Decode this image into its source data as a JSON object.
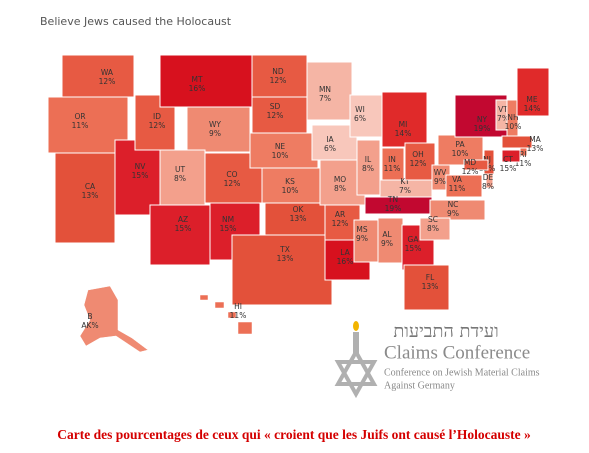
{
  "title": "Believe Jews caused the Holocaust",
  "states": [
    {
      "abbr": "WA",
      "value": 12,
      "value_label": "12%",
      "color": "#e75a43"
    },
    {
      "abbr": "OR",
      "value": 11,
      "value_label": "11%",
      "color": "#ec6f55"
    },
    {
      "abbr": "CA",
      "value": 13,
      "value_label": "13%",
      "color": "#e3513a"
    },
    {
      "abbr": "NV",
      "value": 15,
      "value_label": "15%",
      "color": "#dc1f2a"
    },
    {
      "abbr": "ID",
      "value": 12,
      "value_label": "12%",
      "color": "#e75a43"
    },
    {
      "abbr": "MT",
      "value": 16,
      "value_label": "16%",
      "color": "#d7111e"
    },
    {
      "abbr": "WY",
      "value": 9,
      "value_label": "9%",
      "color": "#ef8a72"
    },
    {
      "abbr": "UT",
      "value": 8,
      "value_label": "8%",
      "color": "#f3a08c"
    },
    {
      "abbr": "AZ",
      "value": 15,
      "value_label": "15%",
      "color": "#dc1f2a"
    },
    {
      "abbr": "NM",
      "value": 15,
      "value_label": "15%",
      "color": "#dc1f2a"
    },
    {
      "abbr": "CO",
      "value": 12,
      "value_label": "12%",
      "color": "#e75a43"
    },
    {
      "abbr": "ND",
      "value": 12,
      "value_label": "12%",
      "color": "#e75a43"
    },
    {
      "abbr": "SD",
      "value": 12,
      "value_label": "12%",
      "color": "#e75a43"
    },
    {
      "abbr": "NE",
      "value": 10,
      "value_label": "10%",
      "color": "#ee7c62"
    },
    {
      "abbr": "KS",
      "value": 10,
      "value_label": "10%",
      "color": "#ee7c62"
    },
    {
      "abbr": "OK",
      "value": 13,
      "value_label": "13%",
      "color": "#e3513a"
    },
    {
      "abbr": "TX",
      "value": 13,
      "value_label": "13%",
      "color": "#e3513a"
    },
    {
      "abbr": "MN",
      "value": 7,
      "value_label": "7%",
      "color": "#f5b5a5"
    },
    {
      "abbr": "IA",
      "value": 6,
      "value_label": "6%",
      "color": "#f8c7bb"
    },
    {
      "abbr": "MO",
      "value": 8,
      "value_label": "8%",
      "color": "#f3a08c"
    },
    {
      "abbr": "AR",
      "value": 12,
      "value_label": "12%",
      "color": "#e75a43"
    },
    {
      "abbr": "LA",
      "value": 16,
      "value_label": "16%",
      "color": "#d7111e"
    },
    {
      "abbr": "WI",
      "value": 6,
      "value_label": "6%",
      "color": "#f8c7bb"
    },
    {
      "abbr": "IL",
      "value": 8,
      "value_label": "8%",
      "color": "#f3a08c"
    },
    {
      "abbr": "MS",
      "value": 9,
      "value_label": "9%",
      "color": "#ef8a72"
    },
    {
      "abbr": "MI",
      "value": 14,
      "value_label": "14%",
      "color": "#e02a2a"
    },
    {
      "abbr": "IN",
      "value": 11,
      "value_label": "11%",
      "color": "#ec6f55"
    },
    {
      "abbr": "KY",
      "value": 7,
      "value_label": "7%",
      "color": "#f5b5a5"
    },
    {
      "abbr": "TN",
      "value": 19,
      "value_label": "19%",
      "color": "#c20830"
    },
    {
      "abbr": "AL",
      "value": 9,
      "value_label": "9%",
      "color": "#ef8a72"
    },
    {
      "abbr": "OH",
      "value": 12,
      "value_label": "12%",
      "color": "#e75a43"
    },
    {
      "abbr": "GA",
      "value": 15,
      "value_label": "15%",
      "color": "#dc1f2a"
    },
    {
      "abbr": "FL",
      "value": 13,
      "value_label": "13%",
      "color": "#e3513a"
    },
    {
      "abbr": "WV",
      "value": 9,
      "value_label": "9%",
      "color": "#ef8a72"
    },
    {
      "abbr": "VA",
      "value": 11,
      "value_label": "11%",
      "color": "#ec6f55"
    },
    {
      "abbr": "NC",
      "value": 9,
      "value_label": "9%",
      "color": "#ef8a72"
    },
    {
      "abbr": "SC",
      "value": 8,
      "value_label": "8%",
      "color": "#f3a08c"
    },
    {
      "abbr": "PA",
      "value": 10,
      "value_label": "10%",
      "color": "#ee7c62"
    },
    {
      "abbr": "NY",
      "value": 19,
      "value_label": "19%",
      "color": "#c20830"
    },
    {
      "abbr": "VT",
      "value": 7,
      "value_label": "7%",
      "color": "#f5b5a5"
    },
    {
      "abbr": "NH",
      "value": 10,
      "value_label": "10%",
      "color": "#ee7c62"
    },
    {
      "abbr": "ME",
      "value": 14,
      "value_label": "14%",
      "color": "#e02a2a"
    },
    {
      "abbr": "MA",
      "value": 13,
      "value_label": "13%",
      "color": "#e3513a"
    },
    {
      "abbr": "RI",
      "value": 11,
      "value_label": "11%",
      "color": "#ec6f55"
    },
    {
      "abbr": "CT",
      "value": 15,
      "value_label": "15%",
      "color": "#dc1f2a"
    },
    {
      "abbr": "NJ",
      "value": 13,
      "value_label": "13%",
      "color": "#e3513a"
    },
    {
      "abbr": "DE",
      "value": 8,
      "value_label": "8%",
      "color": "#f3a08c"
    },
    {
      "abbr": "MD",
      "value": 12,
      "value_label": "12%",
      "color": "#e75a43"
    },
    {
      "abbr": "HI",
      "value": 11,
      "value_label": "11%",
      "color": "#ec6f55"
    },
    {
      "abbr": "B",
      "value_label": "AK%",
      "color": "#ef8a72"
    }
  ],
  "logo": {
    "hebrew": "ועידת התביעות",
    "name": "Claims Conference",
    "subtitle_lines": [
      "Conference on Jewish Material Claims",
      "Against Germany"
    ]
  },
  "caption": "Carte des pourcentages de ceux qui « croient que les Juifs ont causé l’Holocauste »"
}
